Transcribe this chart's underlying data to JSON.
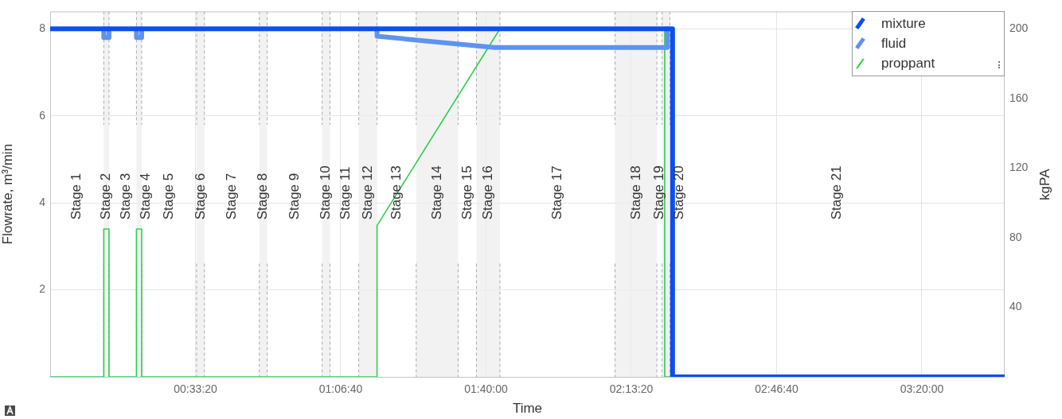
{
  "chart_data": {
    "type": "line",
    "xlabel": "Time",
    "ylabel": "Flowrate, m³/min",
    "y2label": "kgPA",
    "xlim": [
      0,
      3.65
    ],
    "xticks": [
      {
        "value": 0.5556,
        "label": "00:33:20"
      },
      {
        "value": 1.1111,
        "label": "01:06:40"
      },
      {
        "value": 1.6667,
        "label": "01:40:00"
      },
      {
        "value": 2.2222,
        "label": "02:13:20"
      },
      {
        "value": 2.7778,
        "label": "02:46:40"
      },
      {
        "value": 3.3333,
        "label": "03:20:00"
      }
    ],
    "ylim": [
      0,
      8.4
    ],
    "yticks": [
      2,
      4,
      6,
      8
    ],
    "y2lim": [
      0,
      210
    ],
    "y2ticks": [
      40,
      80,
      120,
      160,
      200
    ],
    "grid": true,
    "legend": "top right",
    "marker": "none",
    "line_style": "solid",
    "series": [
      {
        "name": "mixture",
        "color": "#0b4ff0",
        "x": [
          0,
          2.38,
          2.38,
          3.65
        ],
        "values": [
          8,
          8,
          0,
          0
        ]
      },
      {
        "name": "fluid",
        "color": "#5e93ee",
        "x": [
          0.205,
          0.205,
          0.225,
          0.225,
          0.28,
          0.33,
          0.33,
          0.35,
          0.35,
          0.8,
          1.25,
          1.25,
          1.7,
          2.36,
          2.36
        ],
        "values": [
          8,
          7.8,
          7.8,
          8,
          null,
          8,
          7.8,
          7.8,
          8,
          null,
          8,
          7.83,
          7.57,
          7.57,
          8
        ]
      },
      {
        "name": "proppant",
        "color": "#2fcf4f",
        "axis": "y2",
        "x": [
          0,
          0.205,
          0.205,
          0.225,
          0.225,
          0.33,
          0.33,
          0.35,
          0.35,
          1.25,
          1.25,
          1.72,
          2.0,
          2.35,
          2.35,
          2.38
        ],
        "values": [
          0,
          0,
          85,
          85,
          0,
          0,
          85,
          85,
          0,
          0,
          87,
          200,
          null,
          200,
          0,
          0
        ]
      }
    ],
    "bands": [
      {
        "axis": "x",
        "from": 0.205,
        "to": 0.225,
        "label": "Stage 2",
        "color": "#eeeeee"
      },
      {
        "axis": "x",
        "from": 0.33,
        "to": 0.35,
        "label": "Stage 4",
        "color": "#eeeeee"
      },
      {
        "axis": "x",
        "from": 0.56,
        "to": 0.59,
        "label": "Stage 6",
        "color": "#eeeeee"
      },
      {
        "axis": "x",
        "from": 0.8,
        "to": 0.83,
        "label": "Stage 8",
        "color": "#eeeeee"
      },
      {
        "axis": "x",
        "from": 1.04,
        "to": 1.07,
        "label": "Stage 10",
        "color": "#eeeeee"
      },
      {
        "axis": "x",
        "from": 1.18,
        "to": 1.25,
        "label": "Stage 12",
        "color": "#eeeeee"
      },
      {
        "axis": "x",
        "from": 1.4,
        "to": 1.56,
        "label": "Stage 14",
        "color": "#eeeeee"
      },
      {
        "axis": "x",
        "from": 1.63,
        "to": 1.72,
        "label": "Stage 16",
        "color": "#eeeeee"
      },
      {
        "axis": "x",
        "from": 2.16,
        "to": 2.32,
        "label": "Stage 18",
        "color": "#eeeeee"
      },
      {
        "axis": "x",
        "from": 2.34,
        "to": 2.37,
        "label": "Stage 20",
        "color": "#eeeeee"
      }
    ],
    "ref_lines": [
      {
        "axis": "x",
        "value": 0.205,
        "line_style": "dashed",
        "color": "#ababab"
      },
      {
        "axis": "x",
        "value": 0.225,
        "line_style": "dashed",
        "color": "#ababab"
      },
      {
        "axis": "x",
        "value": 0.33,
        "line_style": "dashed",
        "color": "#ababab"
      },
      {
        "axis": "x",
        "value": 0.35,
        "line_style": "dashed",
        "color": "#ababab"
      },
      {
        "axis": "x",
        "value": 0.56,
        "line_style": "dashed",
        "color": "#ababab"
      },
      {
        "axis": "x",
        "value": 0.59,
        "line_style": "dashed",
        "color": "#ababab"
      },
      {
        "axis": "x",
        "value": 0.8,
        "line_style": "dashed",
        "color": "#ababab"
      },
      {
        "axis": "x",
        "value": 0.83,
        "line_style": "dashed",
        "color": "#ababab"
      },
      {
        "axis": "x",
        "value": 1.04,
        "line_style": "dashed",
        "color": "#ababab"
      },
      {
        "axis": "x",
        "value": 1.07,
        "line_style": "dashed",
        "color": "#ababab"
      },
      {
        "axis": "x",
        "value": 1.18,
        "line_style": "dashed",
        "color": "#ababab"
      },
      {
        "axis": "x",
        "value": 1.25,
        "line_style": "dashed",
        "color": "#ababab"
      },
      {
        "axis": "x",
        "value": 1.4,
        "line_style": "dashed",
        "color": "#ababab"
      },
      {
        "axis": "x",
        "value": 1.56,
        "line_style": "dashed",
        "color": "#ababab"
      },
      {
        "axis": "x",
        "value": 1.63,
        "line_style": "dashed",
        "color": "#ababab"
      },
      {
        "axis": "x",
        "value": 1.72,
        "line_style": "dashed",
        "color": "#ababab"
      },
      {
        "axis": "x",
        "value": 2.16,
        "line_style": "dashed",
        "color": "#ababab"
      },
      {
        "axis": "x",
        "value": 2.32,
        "line_style": "dashed",
        "color": "#ababab"
      },
      {
        "axis": "x",
        "value": 2.34,
        "line_style": "dashed",
        "color": "#ababab"
      },
      {
        "axis": "x",
        "value": 2.37,
        "line_style": "dashed",
        "color": "#ababab"
      }
    ],
    "annotations": [
      "Stage 1",
      "Stage 3",
      "Stage 5",
      "Stage 7",
      "Stage 9",
      "Stage 11",
      "Stage 13",
      "Stage 15",
      "Stage 17",
      "Stage 19",
      "Stage 21"
    ]
  }
}
